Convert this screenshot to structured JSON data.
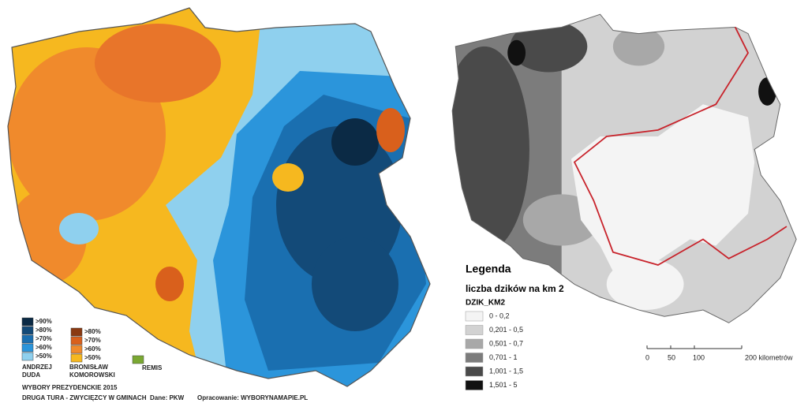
{
  "left_map": {
    "duda_legend": [
      {
        "label": ">90%",
        "color": "#0b2a45"
      },
      {
        "label": ">80%",
        "color": "#134a78"
      },
      {
        "label": ">70%",
        "color": "#1a6fb0"
      },
      {
        "label": ">60%",
        "color": "#2b95db"
      },
      {
        "label": ">50%",
        "color": "#8fd0ee"
      }
    ],
    "komorowski_legend": [
      {
        "label": ">80%",
        "color": "#8a3a12"
      },
      {
        "label": ">70%",
        "color": "#d9601c"
      },
      {
        "label": ">60%",
        "color": "#f08a2c"
      },
      {
        "label": ">50%",
        "color": "#f6b81f"
      }
    ],
    "duda_name": [
      "ANDRZEJ",
      "DUDA"
    ],
    "komorowski_name": [
      "BRONISŁAW",
      "KOMOROWSKI"
    ],
    "tie": {
      "label": "REMIS",
      "color": "#7aa832"
    },
    "title": "WYBORY PREZYDENCKIE 2015",
    "subtitle": "DRUGA TURA - ZWYCIĘZCY W GMINACH",
    "source": "Dane: PKW",
    "author": "Opracowanie: WYBORYNAMAPIE.PL"
  },
  "right_map": {
    "legend_title": "Legenda",
    "legend_subtitle": "liczba dzików na km 2",
    "field": "DZIK_KM2",
    "classes": [
      {
        "label": "0 - 0,2",
        "color": "#f4f4f4"
      },
      {
        "label": "0,201 - 0,5",
        "color": "#d2d2d2"
      },
      {
        "label": "0,501 - 0,7",
        "color": "#a8a8a8"
      },
      {
        "label": "0,701 - 1",
        "color": "#7c7c7c"
      },
      {
        "label": "1,001 - 1,5",
        "color": "#4a4a4a"
      },
      {
        "label": "1,501 - 5",
        "color": "#111111"
      }
    ],
    "scale_labels": [
      "0",
      "50",
      "100",
      "200 kilometrów"
    ]
  }
}
